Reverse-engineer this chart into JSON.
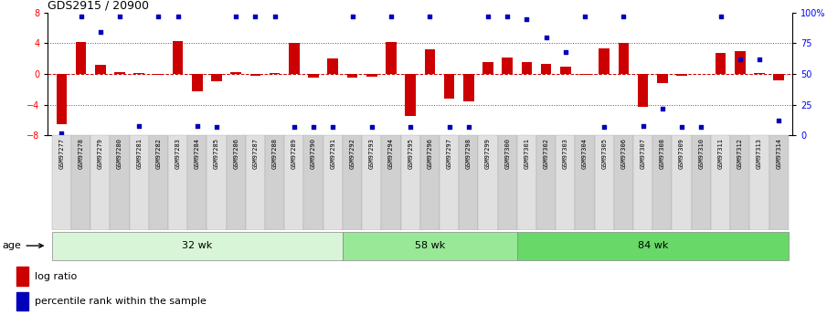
{
  "title": "GDS2915 / 20900",
  "samples": [
    "GSM97277",
    "GSM97278",
    "GSM97279",
    "GSM97280",
    "GSM97281",
    "GSM97282",
    "GSM97283",
    "GSM97284",
    "GSM97285",
    "GSM97286",
    "GSM97287",
    "GSM97288",
    "GSM97289",
    "GSM97290",
    "GSM97291",
    "GSM97292",
    "GSM97293",
    "GSM97294",
    "GSM97295",
    "GSM97296",
    "GSM97297",
    "GSM97298",
    "GSM97299",
    "GSM97300",
    "GSM97301",
    "GSM97302",
    "GSM97303",
    "GSM97304",
    "GSM97305",
    "GSM97306",
    "GSM97307",
    "GSM97308",
    "GSM97309",
    "GSM97310",
    "GSM97311",
    "GSM97312",
    "GSM97313",
    "GSM97314"
  ],
  "log_ratio": [
    -6.5,
    4.2,
    1.2,
    0.2,
    0.15,
    -0.1,
    4.3,
    -2.2,
    -1.0,
    0.2,
    -0.2,
    0.1,
    4.0,
    -0.5,
    2.0,
    -0.5,
    -0.3,
    4.2,
    -5.5,
    3.2,
    -3.2,
    -3.5,
    1.5,
    2.2,
    1.5,
    1.3,
    1.0,
    -0.1,
    3.3,
    4.0,
    -4.3,
    -1.2,
    -0.2,
    0.0,
    2.8,
    3.0,
    0.1,
    -0.8
  ],
  "percentile": [
    2,
    97,
    84,
    97,
    8,
    97,
    97,
    8,
    7,
    97,
    97,
    97,
    7,
    7,
    7,
    97,
    7,
    97,
    7,
    97,
    7,
    7,
    97,
    97,
    95,
    80,
    68,
    97,
    7,
    97,
    8,
    22,
    7,
    7,
    97,
    62,
    62,
    12
  ],
  "groups": [
    {
      "label": "32 wk",
      "start": 0,
      "end": 15,
      "color": "#d8f5d8"
    },
    {
      "label": "58 wk",
      "start": 15,
      "end": 24,
      "color": "#98e898"
    },
    {
      "label": "84 wk",
      "start": 24,
      "end": 38,
      "color": "#68d868"
    }
  ],
  "bar_color": "#cc0000",
  "dot_color": "#0000bb",
  "bar_width": 0.55,
  "ylim": [
    -8,
    8
  ],
  "yticks_left": [
    -8,
    -4,
    0,
    4,
    8
  ],
  "hline_color": "#cc0000",
  "dotted_color": "#555555",
  "label_bg_colors": [
    "#e0e0e0",
    "#d0d0d0"
  ]
}
